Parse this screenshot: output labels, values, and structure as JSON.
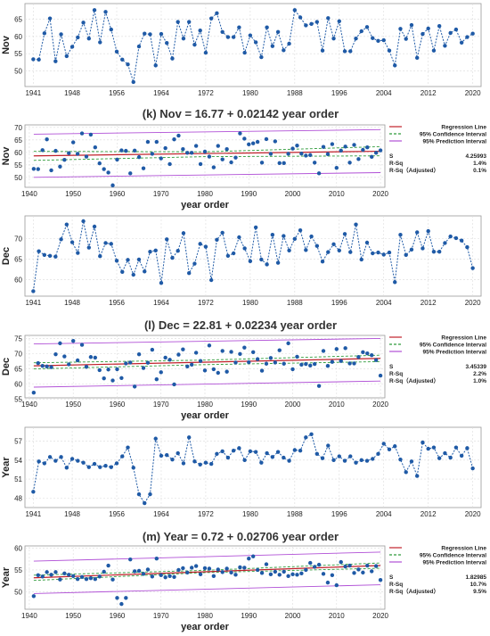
{
  "figure": {
    "years_start": 1941,
    "years_end": 2020,
    "captions": {
      "k": "(k) Nov = 16.77 + 0.02142 year order",
      "l": "(l) Dec = 22.81 + 0.02234 year order",
      "m": "(m) Year = 0.72 + 0.02706 year order"
    },
    "legend_labels": [
      "Regression Line",
      "95% Confidence Interval",
      "95% Prediction Interval"
    ],
    "colors": {
      "series": "#1f5aa6",
      "regression": "#c0202a",
      "confidence": "#2e9b3a",
      "prediction": "#b04fd6",
      "grid": "#dcdcdc",
      "frame": "#9a9a9a"
    }
  },
  "chart_data": [
    {
      "id": "nov-ts",
      "type": "line",
      "ylabel": "Nov",
      "xticks": [
        1941,
        1948,
        1956,
        1964,
        1972,
        1980,
        1988,
        1996,
        2004,
        2012,
        2020
      ],
      "yticks": [
        50,
        55,
        60,
        65
      ],
      "ylim": [
        45.5,
        69.5
      ],
      "values": [
        53.4,
        53.3,
        60.9,
        65.2,
        52.8,
        60.6,
        54.3,
        57.0,
        59.7,
        64.0,
        59.4,
        67.6,
        58.3,
        67.1,
        62.0,
        55.6,
        53.3,
        51.9,
        46.8,
        57.1,
        60.8,
        60.6,
        51.6,
        60.7,
        58.1,
        53.6,
        64.2,
        59.4,
        64.2,
        57.6,
        61.7,
        55.3,
        65.2,
        66.7,
        61.3,
        59.8,
        59.8,
        62.6,
        55.3,
        60.3,
        58.3,
        54.0,
        62.6,
        57.2,
        61.3,
        56.0,
        57.9,
        67.6,
        65.5,
        63.2,
        63.6,
        64.2,
        55.9,
        65.3,
        59.4,
        64.4,
        55.7,
        55.7,
        59.4,
        61.5,
        62.7,
        59.5,
        58.7,
        58.9,
        55.9,
        51.6,
        62.2,
        59.3,
        63.3,
        53.8,
        60.7,
        62.3,
        55.9,
        63.0,
        57.3,
        61.0,
        62.0,
        58.2,
        59.8,
        60.8
      ]
    },
    {
      "id": "nov-reg",
      "type": "scatter",
      "ylabel": "Nov",
      "xlabel": "year order",
      "xticks": [
        1940,
        1950,
        1960,
        1970,
        1980,
        1990,
        2000,
        2010,
        2020
      ],
      "yticks": [
        50,
        55,
        60,
        65,
        70
      ],
      "ylim": [
        46,
        71
      ],
      "stats": {
        "labels": [
          "S",
          "R-Sq",
          "R-Sq（Adjusted）"
        ],
        "values": [
          "4.25993",
          "1.4%",
          "0.1%"
        ]
      },
      "regression": {
        "intercept": 16.77,
        "slope": 0.02142
      },
      "confidence_band": [
        {
          "year": 1941,
          "lower": 56.8,
          "upper": 60.4
        },
        {
          "year": 1980,
          "lower": 58.3,
          "upper": 60.2
        },
        {
          "year": 2020,
          "lower": 58.6,
          "upper": 62.3
        }
      ],
      "prediction_band": [
        {
          "year": 1941,
          "lower": 50.0,
          "upper": 67.3
        },
        {
          "year": 2020,
          "lower": 51.9,
          "upper": 69.1
        }
      ]
    },
    {
      "id": "dec-ts",
      "type": "line",
      "ylabel": "Dec",
      "xticks": [
        1941,
        1948,
        1956,
        1964,
        1972,
        1980,
        1988,
        1996,
        2004,
        2012,
        2020
      ],
      "yticks": [
        60,
        65,
        70
      ],
      "ylim": [
        56,
        75.5
      ],
      "values": [
        57.2,
        66.9,
        66.0,
        65.8,
        65.6,
        69.8,
        73.4,
        69.1,
        66.5,
        74.2,
        67.8,
        72.9,
        65.7,
        68.9,
        68.7,
        64.6,
        61.9,
        64.8,
        61.2,
        64.9,
        62.0,
        66.8,
        67.1,
        59.2,
        69.8,
        65.3,
        67.0,
        71.3,
        61.6,
        63.9,
        68.7,
        68.0,
        59.9,
        69.7,
        71.4,
        65.8,
        66.4,
        70.3,
        67.6,
        64.5,
        72.7,
        64.9,
        63.7,
        70.9,
        64.1,
        70.6,
        67.1,
        69.9,
        72.0,
        67.2,
        70.5,
        68.2,
        64.4,
        66.7,
        68.6,
        67.1,
        71.1,
        66.7,
        73.4,
        64.9,
        69.0,
        66.4,
        66.6,
        66.1,
        66.6,
        59.4,
        70.9,
        66.0,
        67.3,
        71.5,
        67.6,
        71.8,
        66.8,
        66.8,
        68.9,
        70.5,
        70.1,
        69.5,
        67.9,
        62.8
      ]
    },
    {
      "id": "dec-reg",
      "type": "scatter",
      "ylabel": "Dec",
      "xlabel": "year order",
      "xticks": [
        1940,
        1950,
        1960,
        1970,
        1980,
        1990,
        2000,
        2010,
        2020
      ],
      "yticks": [
        55,
        60,
        65,
        70,
        75
      ],
      "ylim": [
        55.5,
        76
      ],
      "stats": {
        "labels": [
          "S",
          "R-Sq",
          "R-Sq（Adjusted）"
        ],
        "values": [
          "3.45339",
          "2.2%",
          "1.0%"
        ]
      },
      "regression": {
        "intercept": 22.81,
        "slope": 0.02234
      },
      "confidence_band": [
        {
          "year": 1941,
          "lower": 65.0,
          "upper": 67.0
        },
        {
          "year": 1980,
          "lower": 66.4,
          "upper": 67.9
        },
        {
          "year": 2020,
          "lower": 67.4,
          "upper": 69.5
        }
      ],
      "prediction_band": [
        {
          "year": 1941,
          "lower": 59.0,
          "upper": 73.2
        },
        {
          "year": 2020,
          "lower": 61.0,
          "upper": 75.0
        }
      ]
    },
    {
      "id": "year-ts",
      "type": "line",
      "ylabel": "Year",
      "xticks": [
        1941,
        1948,
        1956,
        1964,
        1972,
        1980,
        1988,
        1996,
        2004,
        2012,
        2020
      ],
      "yticks": [
        48,
        51,
        54,
        57
      ],
      "ylim": [
        46.5,
        59.2
      ],
      "values": [
        49.0,
        53.8,
        53.5,
        54.5,
        53.9,
        54.5,
        52.8,
        54.2,
        53.9,
        53.6,
        52.9,
        53.4,
        52.9,
        53.1,
        52.9,
        53.5,
        54.6,
        56.0,
        52.8,
        48.6,
        47.2,
        48.6,
        57.4,
        54.7,
        54.8,
        54.1,
        55.1,
        53.5,
        57.6,
        53.8,
        53.3,
        53.6,
        53.4,
        55.0,
        55.4,
        54.4,
        55.5,
        55.9,
        54.0,
        55.4,
        55.3,
        53.6,
        55.1,
        54.5,
        55.3,
        54.4,
        53.9,
        55.6,
        55.5,
        57.6,
        58.1,
        55.0,
        54.3,
        56.3,
        54.0,
        54.6,
        53.9,
        54.6,
        53.6,
        54.0,
        53.9,
        54.2,
        55.0,
        56.6,
        55.7,
        56.2,
        54.1,
        52.1,
        53.8,
        51.5,
        56.8,
        55.8,
        56.0,
        54.3,
        55.1,
        54.4,
        56.0,
        54.7,
        55.9,
        52.7
      ]
    },
    {
      "id": "year-reg",
      "type": "scatter",
      "ylabel": "Year",
      "xlabel": "year order",
      "xticks": [
        1940,
        1950,
        1960,
        1970,
        1980,
        1990,
        2000,
        2010,
        2020
      ],
      "yticks": [
        50,
        55,
        60
      ],
      "ylim": [
        46,
        60.5
      ],
      "stats": {
        "labels": [
          "S",
          "R-Sq",
          "R-Sq（Adjusted）"
        ],
        "values": [
          "1.82985",
          "10.7%",
          "9.5%"
        ]
      },
      "regression": {
        "intercept": 0.72,
        "slope": 0.02706
      },
      "confidence_band": [
        {
          "year": 1941,
          "lower": 52.6,
          "upper": 53.8
        },
        {
          "year": 1980,
          "lower": 54.4,
          "upper": 54.9
        },
        {
          "year": 2020,
          "lower": 55.4,
          "upper": 56.6
        }
      ],
      "prediction_band": [
        {
          "year": 1941,
          "lower": 49.6,
          "upper": 57.0
        },
        {
          "year": 2020,
          "lower": 51.6,
          "upper": 59.1
        }
      ]
    }
  ]
}
